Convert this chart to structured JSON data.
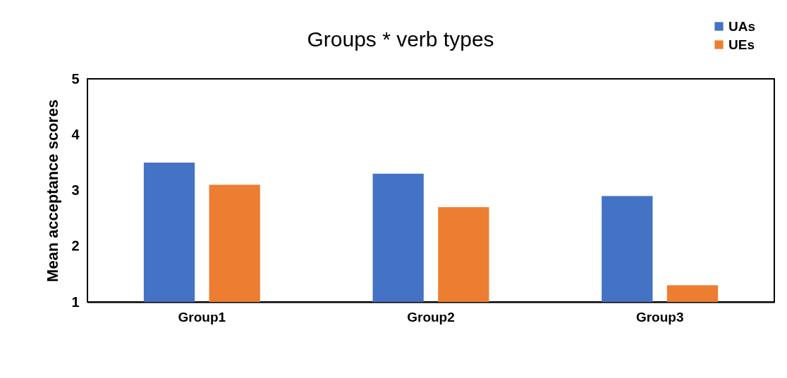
{
  "chart_data": {
    "type": "bar",
    "title": "Groups * verb types",
    "ylabel": "Mean acceptance scores",
    "categories": [
      "Group1",
      "Group2",
      "Group3"
    ],
    "series": [
      {
        "name": "UAs",
        "color": "#4472c4",
        "values": [
          3.5,
          3.3,
          2.9
        ]
      },
      {
        "name": "UEs",
        "color": "#ed7d31",
        "values": [
          3.1,
          2.7,
          1.3
        ]
      }
    ],
    "ylim": [
      1,
      5
    ],
    "yticks": [
      1,
      2,
      3,
      4,
      5
    ],
    "grid": false,
    "legend": "top right"
  }
}
